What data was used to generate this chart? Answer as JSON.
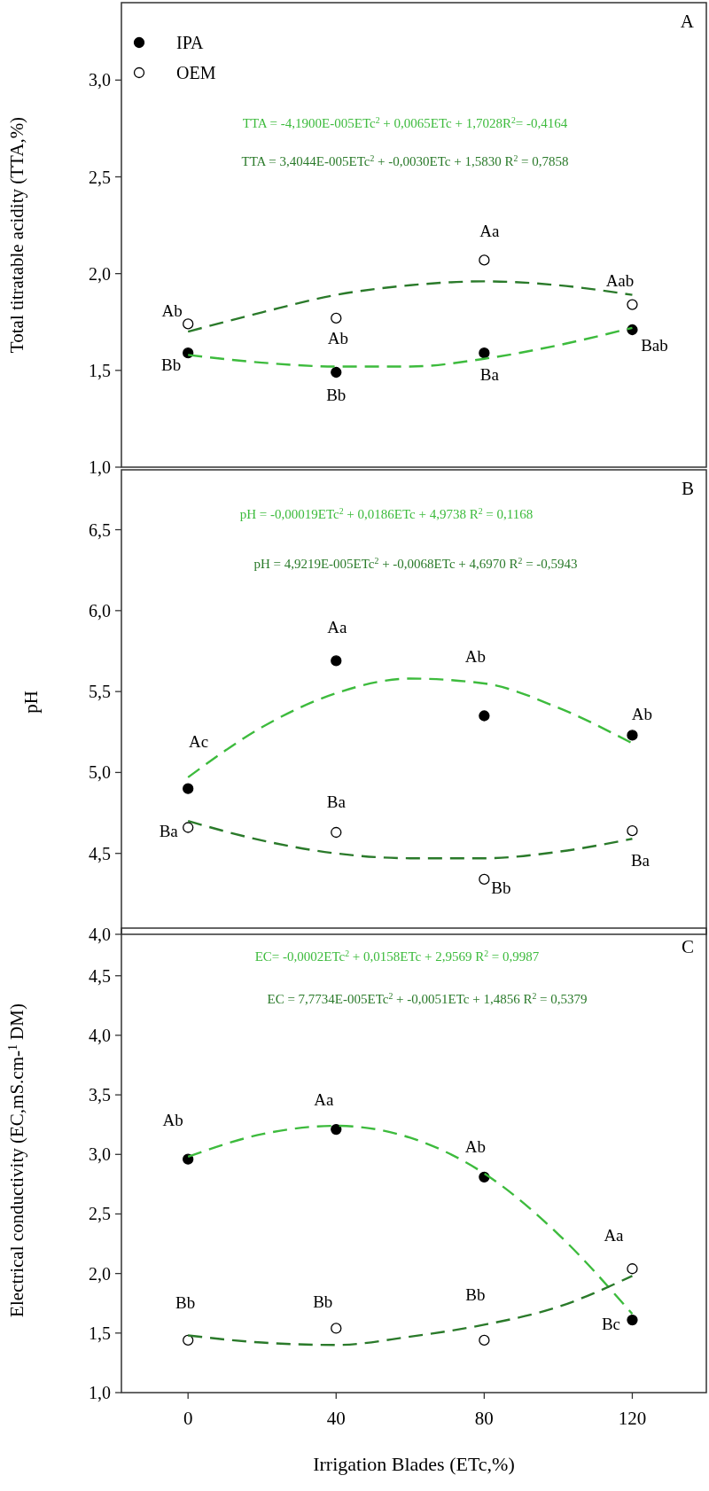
{
  "chart_data": [
    {
      "type": "scatter",
      "title": "A",
      "ylabel": "Total titratable acidity (TTA,%)",
      "x": [
        0,
        40,
        80,
        120
      ],
      "xlim": [
        -18,
        140
      ],
      "ylim": [
        1,
        3.4
      ],
      "yticks": [
        {
          "value": 1,
          "label": "1,0"
        },
        {
          "value": 1.5,
          "label": "1,5"
        },
        {
          "value": 2,
          "label": "2,0"
        },
        {
          "value": 2.5,
          "label": "2,5"
        },
        {
          "value": 3,
          "label": "3,0"
        }
      ],
      "tick_labels": "y",
      "marker": "circle",
      "legend": "top left",
      "series": [
        {
          "name": "IPA",
          "color": "#000000",
          "values": [
            1.59,
            1.49,
            1.59,
            1.71
          ]
        },
        {
          "name": "OEM",
          "color": "#ffffff",
          "values": [
            1.74,
            1.77,
            2.07,
            1.84
          ]
        },
        {
          "type": "line",
          "color": "#3dbb3d",
          "marker": "none",
          "line_style": "dashed",
          "x": [
            0,
            20,
            40,
            60,
            80,
            100,
            120
          ],
          "values": [
            1.58,
            1.54,
            1.52,
            1.52,
            1.56,
            1.63,
            1.72
          ]
        },
        {
          "type": "line",
          "color": "#2a7a2a",
          "marker": "none",
          "line_style": "dashed",
          "x": [
            0,
            20,
            40,
            60,
            80,
            100,
            120
          ],
          "values": [
            1.7,
            1.8,
            1.89,
            1.94,
            1.96,
            1.94,
            1.89
          ]
        }
      ],
      "annotations": [
        "TTA = -4,1900E-005ETc$^{2}$ + 0,0065ETc + 1,7028R$^{2}$= -0,4164",
        "TTA = 3,4044E-005ETc$^{2}$ + -0,0030ETc + 1,5830 R$^{2}$ = 0,7858",
        {
          "text": "Ab",
          "x": 0,
          "y": 1.74
        },
        {
          "text": "Bb",
          "x": 0,
          "y": 1.59
        },
        {
          "text": "Ab",
          "x": 40,
          "y": 1.77
        },
        {
          "text": "Bb",
          "x": 40,
          "y": 1.49
        },
        {
          "text": "Aa",
          "x": 80,
          "y": 2.07
        },
        {
          "text": "Ba",
          "x": 80,
          "y": 1.59
        },
        {
          "text": "Aab",
          "x": 120,
          "y": 1.84
        },
        {
          "text": "Bab",
          "x": 120,
          "y": 1.71
        }
      ]
    },
    {
      "type": "scatter",
      "title": "B",
      "ylabel": "pH",
      "x": [
        0,
        40,
        80,
        120
      ],
      "xlim": [
        -18,
        140
      ],
      "ylim": [
        4,
        6.87
      ],
      "yticks": [
        {
          "value": 4,
          "label": "4,0"
        },
        {
          "value": 4.5,
          "label": "4,5"
        },
        {
          "value": 5,
          "label": "5,0"
        },
        {
          "value": 5.5,
          "label": "5,5"
        },
        {
          "value": 6,
          "label": "6,0"
        },
        {
          "value": 6.5,
          "label": "6,5"
        }
      ],
      "tick_labels": "y",
      "marker": "circle",
      "series": [
        {
          "color": "#000000",
          "values": [
            4.9,
            5.69,
            5.35,
            5.23
          ]
        },
        {
          "color": "#ffffff",
          "values": [
            4.66,
            4.63,
            4.34,
            4.64
          ]
        },
        {
          "type": "line",
          "color": "#3dbb3d",
          "marker": "none",
          "line_style": "dashed",
          "x": [
            0,
            20,
            40,
            60,
            80,
            100,
            120
          ],
          "values": [
            4.97,
            5.28,
            5.49,
            5.58,
            5.55,
            5.4,
            5.18
          ]
        },
        {
          "type": "line",
          "color": "#2a7a2a",
          "marker": "none",
          "line_style": "dashed",
          "x": [
            0,
            20,
            40,
            60,
            80,
            100,
            120
          ],
          "values": [
            4.7,
            4.58,
            4.5,
            4.47,
            4.47,
            4.51,
            4.59
          ]
        }
      ],
      "annotations": [
        "pH = -0,00019ETc$^{2}$ + 0,0186ETc + 4,9738 R$^{2}$ = 0,1168",
        "pH = 4,9219E-005ETc$^{2}$ + -0,0068ETc + 4,6970  R$^{2}$ = -0,5943",
        {
          "text": "Aa",
          "x": 40,
          "y": 5.69
        },
        {
          "text": "Ab",
          "x": 80,
          "y": 5.55
        },
        {
          "text": "Ab",
          "x": 120,
          "y": 5.23
        },
        {
          "text": "Ac",
          "x": 0,
          "y": 4.9
        },
        {
          "text": "Ba",
          "x": 40,
          "y": 4.63
        },
        {
          "text": "Ba",
          "x": 0,
          "y": 4.66
        },
        {
          "text": "Bb",
          "x": 80,
          "y": 4.34
        },
        {
          "text": "Ba",
          "x": 120,
          "y": 4.64
        }
      ]
    },
    {
      "type": "scatter",
      "title": "C",
      "ylabel": "Electrical conductivity (EC,mS.cm-$^{1}$ DM)",
      "xlabel": "Irrigation Blades (ETc,%)",
      "x": [
        0,
        40,
        80,
        120
      ],
      "xlim": [
        -18,
        140
      ],
      "ylim": [
        1,
        4.9
      ],
      "xticks": [
        0,
        40,
        80,
        120
      ],
      "yticks": [
        {
          "value": 1,
          "label": "1,0"
        },
        {
          "value": 1.5,
          "label": "1,5"
        },
        {
          "value": 2,
          "label": "2,0"
        },
        {
          "value": 2.5,
          "label": "2,5"
        },
        {
          "value": 3,
          "label": "3,0"
        },
        {
          "value": 3.5,
          "label": "3,5"
        },
        {
          "value": 4,
          "label": "4,0"
        },
        {
          "value": 4.5,
          "label": "4,5"
        }
      ],
      "marker": "circle",
      "series": [
        {
          "color": "#000000",
          "values": [
            2.96,
            3.21,
            2.81,
            1.61
          ]
        },
        {
          "color": "#ffffff",
          "values": [
            1.44,
            1.54,
            1.44,
            2.04
          ]
        },
        {
          "type": "line",
          "color": "#3dbb3d",
          "marker": "none",
          "line_style": "dashed",
          "x": [
            0,
            20,
            40,
            60,
            80,
            100,
            120
          ],
          "values": [
            2.98,
            3.17,
            3.24,
            3.14,
            2.84,
            2.33,
            1.66
          ]
        },
        {
          "type": "line",
          "color": "#2a7a2a",
          "marker": "none",
          "line_style": "dashed",
          "x": [
            0,
            20,
            40,
            60,
            80,
            100,
            120
          ],
          "values": [
            1.48,
            1.42,
            1.4,
            1.47,
            1.57,
            1.72,
            1.98
          ]
        }
      ],
      "annotations": [
        "EC= -0,0002ETc$^{2}$ + 0,0158ETc + 2,9569  R$^{2}$ = 0,9987",
        "EC = 7,7734E-005ETc$^{2}$ + -0,0051ETc + 1,4856  R$^{2}$ = 0,5379",
        {
          "text": "Ab",
          "x": 0,
          "y": 2.96
        },
        {
          "text": "Aa",
          "x": 40,
          "y": 3.21
        },
        {
          "text": "Ab",
          "x": 80,
          "y": 2.81
        },
        {
          "text": "Aa",
          "x": 120,
          "y": 2.04
        },
        {
          "text": "Bc",
          "x": 120,
          "y": 1.61
        },
        {
          "text": "Bb",
          "x": 0,
          "y": 1.44
        },
        {
          "text": "Bb",
          "x": 40,
          "y": 1.54
        },
        {
          "text": "Bb",
          "x": 80,
          "y": 1.44
        }
      ]
    }
  ]
}
